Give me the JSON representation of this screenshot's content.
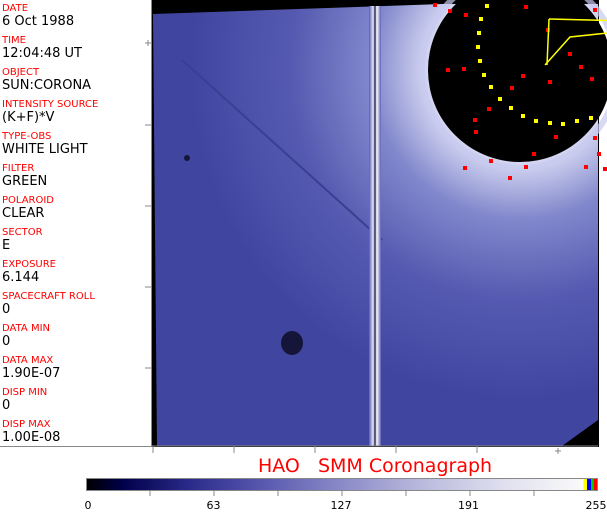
{
  "header_fields": [
    {
      "label": "DATE",
      "value": "6 Oct 1988"
    },
    {
      "label": "TIME",
      "value": "12:04:48 UT"
    },
    {
      "label": "OBJECT",
      "value": "SUN:CORONA"
    },
    {
      "label": "INTENSITY SOURCE",
      "value": "(K+F)*V"
    },
    {
      "label": "TYPE-OBS",
      "value": "WHITE LIGHT"
    },
    {
      "label": "FILTER",
      "value": "GREEN"
    },
    {
      "label": "POLAROID",
      "value": "CLEAR"
    },
    {
      "label": "SECTOR",
      "value": "E"
    },
    {
      "label": "EXPOSURE",
      "value": "6.144"
    },
    {
      "label": "SPACECRAFT ROLL",
      "value": "0"
    },
    {
      "label": "DATA MIN",
      "value": "0"
    },
    {
      "label": "DATA MAX",
      "value": "1.90E-07"
    },
    {
      "label": "DISP MIN",
      "value": "0"
    },
    {
      "label": "DISP MAX",
      "value": "1.00E-08"
    }
  ],
  "title": "HAO   SMM Coronagraph",
  "colorbar": {
    "ticks": [
      "0",
      "63",
      "127",
      "191",
      "255"
    ],
    "min": 0,
    "max": 255,
    "colors": {
      "low": "#000000",
      "mid": "#5a5ab0",
      "high": "#fafafa",
      "markers": [
        "#ffff00",
        "#0000ff",
        "#00cc00",
        "#ff0000"
      ]
    }
  },
  "colors": {
    "label": "#ff0000",
    "image_blue": "#4a4fa8",
    "overlay_red": "#ff0000",
    "overlay_yellow": "#ffff00"
  }
}
